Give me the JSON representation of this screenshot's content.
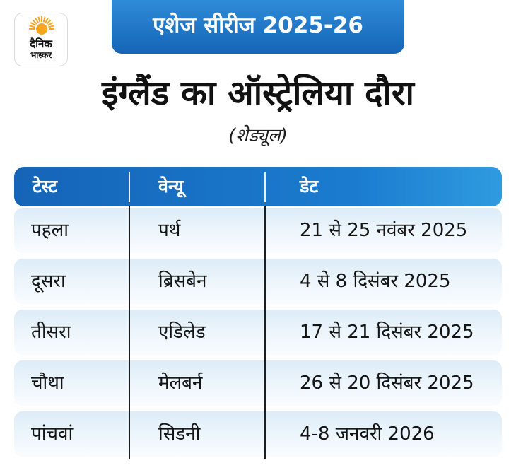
{
  "logo": {
    "line1": "दैनिक",
    "line2": "भास्कर"
  },
  "series_label": "एशेज सीरीज 2025-26",
  "title": "इंग्लैंड का ऑस्ट्रेलिया दौरा",
  "subtitle": "(शेड्यूल)",
  "table": {
    "headers": [
      "टेस्ट",
      "वेन्यू",
      "डेट"
    ],
    "rows": [
      [
        "पहला",
        "पर्थ",
        "21 से 25 नवंबर 2025"
      ],
      [
        "दूसरा",
        "ब्रिसबेन",
        "4 से 8 दिसंबर 2025"
      ],
      [
        "तीसरा",
        "एडिलेड",
        "17 से 21 दिसंबर 2025"
      ],
      [
        "चौथा",
        "मेलबर्न",
        "26 से 20 दिसंबर 2025"
      ],
      [
        "पांचवां",
        "सिडनी",
        "4-8 जनवरी 2026"
      ]
    ]
  },
  "colors": {
    "accent_blue": "#1565b7",
    "row_bg": "#e6f1fa",
    "logo_sun": "#f5a623"
  }
}
